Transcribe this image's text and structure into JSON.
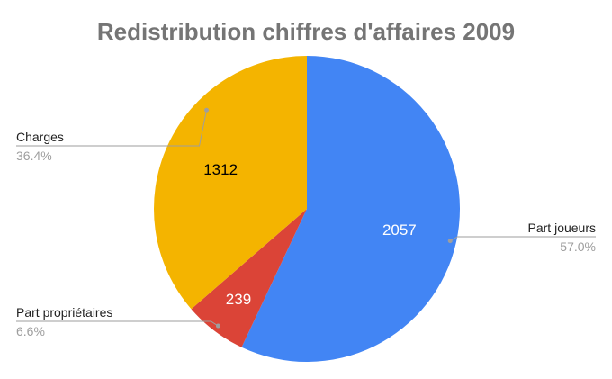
{
  "chart_data": {
    "type": "pie",
    "title": "Redistribution chiffres d'affaires 2009",
    "slices": [
      {
        "name": "Part joueurs",
        "value": 2057,
        "percent": "57.0%",
        "color": "#4285f4",
        "label_color": "#ffffff"
      },
      {
        "name": "Part propriétaires",
        "value": 239,
        "percent": "6.6%",
        "color": "#db4437",
        "label_color": "#ffffff"
      },
      {
        "name": "Charges",
        "value": 1312,
        "percent": "36.4%",
        "color": "#f4b400",
        "label_color": "#000000"
      }
    ],
    "start_angle_deg": 0,
    "direction": "clockwise"
  }
}
